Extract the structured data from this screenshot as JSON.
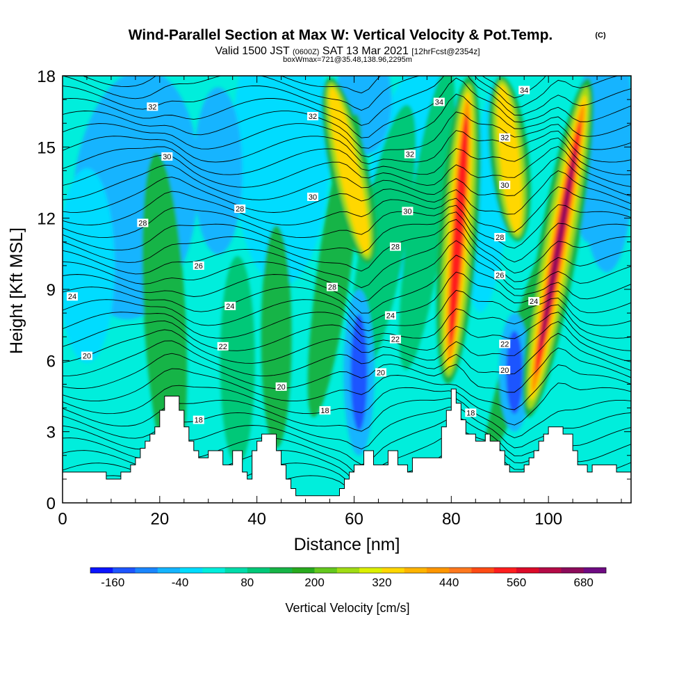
{
  "title": {
    "main": "Wind-Parallel Section at Max W: Vertical Velocity & Pot.Temp.",
    "copyright": "(C)",
    "valid_prefix": "Valid 1500 JST",
    "valid_utc": "(0600Z)",
    "valid_date": "SAT 13 Mar 2021",
    "forecast": "[12hrFcst@2354z]",
    "boxwmax": "boxWmax=721@35.48,138.96,2295m"
  },
  "colorbar": {
    "label": "Vertical Velocity [cm/s]",
    "tick_labels": [
      "-160",
      "-40",
      "80",
      "200",
      "320",
      "440",
      "560",
      "680"
    ],
    "colors": [
      "#0a14ff",
      "#1e55ff",
      "#1a86ff",
      "#14b4ff",
      "#00dcff",
      "#00eedc",
      "#00dcaa",
      "#00c878",
      "#16b446",
      "#28aa1e",
      "#64c81e",
      "#a0dc14",
      "#dcf000",
      "#ffd700",
      "#ffb400",
      "#ff9600",
      "#ff781e",
      "#ff4b14",
      "#ff1e1e",
      "#dc0a28",
      "#b40a46",
      "#8c0a5a",
      "#6e0a82"
    ]
  },
  "chart_data": {
    "type": "heatmap",
    "xlabel": "Distance [nm]",
    "ylabel": "Height [Kft MSL]",
    "xlim": [
      0,
      117
    ],
    "ylim": [
      0,
      18
    ],
    "x_ticks": [
      "0",
      "20",
      "40",
      "60",
      "80",
      "100"
    ],
    "y_ticks": [
      "0",
      "3",
      "6",
      "9",
      "12",
      "15",
      "18"
    ],
    "field": "Vertical Velocity [cm/s]",
    "field_max": 721,
    "updraft_cores": [
      {
        "x": 59,
        "top": 18,
        "bottom": 10,
        "peak": 320
      },
      {
        "x": 81.5,
        "top": 18,
        "bottom": 5,
        "peak": 560
      },
      {
        "x": 92,
        "top": 18,
        "bottom": 11,
        "peak": 380
      },
      {
        "x": 102,
        "top": 18,
        "bottom": 3.5,
        "peak": 680
      }
    ],
    "downdraft_cores": [
      {
        "x": 61,
        "top": 9,
        "bottom": 2,
        "peak": -160
      },
      {
        "x": 93,
        "top": 8,
        "bottom": 3,
        "peak": -140
      },
      {
        "x": 108,
        "top": 18,
        "bottom": 11,
        "peak": -60
      }
    ],
    "terrain_kft": [
      [
        0,
        1.3
      ],
      [
        9,
        1.3
      ],
      [
        9,
        1.0
      ],
      [
        12,
        1.0
      ],
      [
        12,
        1.3
      ],
      [
        14,
        1.3
      ],
      [
        14,
        1.6
      ],
      [
        15,
        1.6
      ],
      [
        15,
        1.9
      ],
      [
        16,
        1.9
      ],
      [
        16,
        2.3
      ],
      [
        17,
        2.3
      ],
      [
        17,
        2.6
      ],
      [
        18,
        2.6
      ],
      [
        18,
        2.9
      ],
      [
        19,
        2.9
      ],
      [
        19,
        3.2
      ],
      [
        20,
        3.2
      ],
      [
        20,
        3.9
      ],
      [
        21,
        3.9
      ],
      [
        21,
        4.5
      ],
      [
        24,
        4.5
      ],
      [
        24,
        3.9
      ],
      [
        25,
        3.9
      ],
      [
        25,
        3.2
      ],
      [
        26,
        3.2
      ],
      [
        26,
        2.6
      ],
      [
        27,
        2.6
      ],
      [
        27,
        2.2
      ],
      [
        28,
        2.2
      ],
      [
        28,
        1.9
      ],
      [
        30,
        1.9
      ],
      [
        30,
        2.2
      ],
      [
        33,
        2.2
      ],
      [
        33,
        1.6
      ],
      [
        35,
        1.6
      ],
      [
        35,
        2.2
      ],
      [
        37,
        2.2
      ],
      [
        37,
        1.3
      ],
      [
        38,
        1.3
      ],
      [
        38,
        1.0
      ],
      [
        39,
        1.0
      ],
      [
        39,
        2.2
      ],
      [
        40,
        2.2
      ],
      [
        40,
        2.6
      ],
      [
        41,
        2.6
      ],
      [
        41,
        2.9
      ],
      [
        44,
        2.9
      ],
      [
        44,
        2.2
      ],
      [
        45,
        2.2
      ],
      [
        45,
        1.6
      ],
      [
        46,
        1.6
      ],
      [
        46,
        1.0
      ],
      [
        47,
        1.0
      ],
      [
        47,
        0.6
      ],
      [
        48,
        0.6
      ],
      [
        48,
        0.3
      ],
      [
        57,
        0.3
      ],
      [
        57,
        0.6
      ],
      [
        58,
        0.6
      ],
      [
        58,
        1.0
      ],
      [
        59,
        1.0
      ],
      [
        59,
        1.3
      ],
      [
        60,
        1.3
      ],
      [
        60,
        1.6
      ],
      [
        62,
        1.6
      ],
      [
        62,
        2.2
      ],
      [
        64,
        2.2
      ],
      [
        64,
        1.6
      ],
      [
        67,
        1.6
      ],
      [
        67,
        2.2
      ],
      [
        69,
        2.2
      ],
      [
        69,
        1.6
      ],
      [
        71,
        1.6
      ],
      [
        71,
        1.3
      ],
      [
        72,
        1.3
      ],
      [
        72,
        1.9
      ],
      [
        78,
        1.9
      ],
      [
        78,
        3.2
      ],
      [
        79,
        3.2
      ],
      [
        79,
        3.9
      ],
      [
        80,
        3.9
      ],
      [
        80,
        4.8
      ],
      [
        81,
        4.8
      ],
      [
        81,
        4.2
      ],
      [
        82,
        4.2
      ],
      [
        82,
        3.5
      ],
      [
        83,
        3.5
      ],
      [
        83,
        2.9
      ],
      [
        85,
        2.9
      ],
      [
        85,
        2.6
      ],
      [
        87,
        2.6
      ],
      [
        87,
        2.9
      ],
      [
        88,
        2.9
      ],
      [
        88,
        2.6
      ],
      [
        90,
        2.6
      ],
      [
        90,
        2.2
      ],
      [
        91,
        2.2
      ],
      [
        91,
        1.6
      ],
      [
        92,
        1.6
      ],
      [
        92,
        1.3
      ],
      [
        95,
        1.3
      ],
      [
        95,
        1.6
      ],
      [
        96,
        1.6
      ],
      [
        96,
        1.9
      ],
      [
        97,
        1.9
      ],
      [
        97,
        2.2
      ],
      [
        98,
        2.2
      ],
      [
        98,
        2.6
      ],
      [
        99,
        2.6
      ],
      [
        99,
        2.9
      ],
      [
        100,
        2.9
      ],
      [
        100,
        3.2
      ],
      [
        103,
        3.2
      ],
      [
        103,
        2.9
      ],
      [
        105,
        2.9
      ],
      [
        105,
        2.2
      ],
      [
        106,
        2.2
      ],
      [
        106,
        1.6
      ],
      [
        108,
        1.6
      ],
      [
        108,
        1.3
      ],
      [
        109,
        1.3
      ],
      [
        109,
        1.6
      ],
      [
        114,
        1.6
      ],
      [
        114,
        1.3
      ],
      [
        117,
        1.3
      ]
    ],
    "theta_contour_labels": [
      {
        "text": "32",
        "x": 18.5,
        "y": 16.7
      },
      {
        "text": "30",
        "x": 21.5,
        "y": 14.6
      },
      {
        "text": "28",
        "x": 16.5,
        "y": 11.8
      },
      {
        "text": "28",
        "x": 36.5,
        "y": 12.4
      },
      {
        "text": "26",
        "x": 28.0,
        "y": 10.0
      },
      {
        "text": "24",
        "x": 2.0,
        "y": 8.7
      },
      {
        "text": "24",
        "x": 34.5,
        "y": 8.3
      },
      {
        "text": "22",
        "x": 33.0,
        "y": 6.6
      },
      {
        "text": "20",
        "x": 5.0,
        "y": 6.2
      },
      {
        "text": "20",
        "x": 45.0,
        "y": 4.9
      },
      {
        "text": "18",
        "x": 28.0,
        "y": 3.5
      },
      {
        "text": "18",
        "x": 54.0,
        "y": 3.9
      },
      {
        "text": "32",
        "x": 51.5,
        "y": 16.3
      },
      {
        "text": "30",
        "x": 51.5,
        "y": 12.9
      },
      {
        "text": "28",
        "x": 55.5,
        "y": 9.1
      },
      {
        "text": "24",
        "x": 67.5,
        "y": 7.9
      },
      {
        "text": "22",
        "x": 68.5,
        "y": 6.9
      },
      {
        "text": "20",
        "x": 65.5,
        "y": 5.5
      },
      {
        "text": "34",
        "x": 77.5,
        "y": 16.9
      },
      {
        "text": "32",
        "x": 71.5,
        "y": 14.7
      },
      {
        "text": "30",
        "x": 71.0,
        "y": 12.3
      },
      {
        "text": "28",
        "x": 68.5,
        "y": 10.8
      },
      {
        "text": "34",
        "x": 95.0,
        "y": 17.4
      },
      {
        "text": "32",
        "x": 91.0,
        "y": 15.4
      },
      {
        "text": "30",
        "x": 91.0,
        "y": 13.4
      },
      {
        "text": "28",
        "x": 90.0,
        "y": 11.2
      },
      {
        "text": "26",
        "x": 90.0,
        "y": 9.6
      },
      {
        "text": "24",
        "x": 97.0,
        "y": 8.5
      },
      {
        "text": "22",
        "x": 91.0,
        "y": 6.7
      },
      {
        "text": "20",
        "x": 91.0,
        "y": 5.6
      },
      {
        "text": "18",
        "x": 84.0,
        "y": 3.8
      }
    ]
  }
}
